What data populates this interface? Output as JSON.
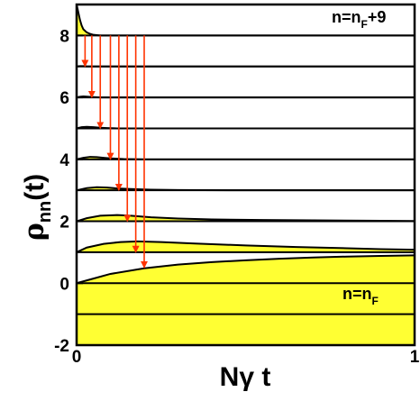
{
  "chart_data": {
    "type": "area",
    "title": "",
    "ylabel": {
      "main": "ρ",
      "sub": "nn",
      "tail": "(t)"
    },
    "xlabel": {
      "main": "Nγ",
      "tail": " t"
    },
    "xlim": [
      0,
      1
    ],
    "ylim": [
      -2,
      9
    ],
    "x_ticks": [
      "0",
      "1"
    ],
    "x_tick_values": [
      0,
      1
    ],
    "y_ticks": [
      "-2",
      "0",
      "2",
      "4",
      "6",
      "8"
    ],
    "y_tick_values": [
      -2,
      0,
      2,
      4,
      6,
      8
    ],
    "grid": false,
    "baselines": [
      -1,
      0,
      1,
      2,
      3,
      4,
      5,
      6,
      7,
      8
    ],
    "fill_color": "#ffff33",
    "arrow_color": "#ff3300",
    "line_color": "#000000",
    "series": [
      {
        "level": 0,
        "x": [
          0,
          0.05,
          0.1,
          0.2,
          0.3,
          0.4,
          0.5,
          0.6,
          0.7,
          0.8,
          0.9,
          1.0
        ],
        "y": [
          0,
          0.15,
          0.3,
          0.48,
          0.6,
          0.68,
          0.74,
          0.79,
          0.83,
          0.86,
          0.88,
          0.9
        ]
      },
      {
        "level": 1,
        "x": [
          0,
          0.03,
          0.08,
          0.13,
          0.18,
          0.25,
          0.35,
          0.5,
          0.65,
          0.8,
          0.9,
          1.0
        ],
        "y": [
          1,
          1.15,
          1.27,
          1.33,
          1.35,
          1.33,
          1.28,
          1.22,
          1.17,
          1.13,
          1.1,
          1.08
        ]
      },
      {
        "level": 2,
        "x": [
          0,
          0.03,
          0.07,
          0.12,
          0.16,
          0.22,
          0.3,
          0.4,
          0.55,
          0.7,
          0.85,
          1.0
        ],
        "y": [
          2,
          2.1,
          2.18,
          2.2,
          2.18,
          2.13,
          2.09,
          2.06,
          2.04,
          2.03,
          2.02,
          2.01
        ]
      },
      {
        "level": 3,
        "x": [
          0,
          0.03,
          0.06,
          0.09,
          0.12,
          0.16,
          0.22,
          0.3,
          0.45,
          0.6,
          0.8,
          1.0
        ],
        "y": [
          3,
          3.07,
          3.1,
          3.09,
          3.06,
          3.04,
          3.02,
          3.01,
          3.0,
          3.0,
          3.0,
          3.0
        ]
      },
      {
        "level": 4,
        "x": [
          0,
          0.02,
          0.04,
          0.06,
          0.08,
          0.1,
          0.14,
          0.2,
          0.3,
          0.5,
          0.75,
          1.0
        ],
        "y": [
          4,
          4.05,
          4.08,
          4.07,
          4.05,
          4.03,
          4.01,
          4.0,
          4.0,
          4.0,
          4.0,
          4.0
        ]
      },
      {
        "level": 5,
        "x": [
          0,
          0.015,
          0.03,
          0.05,
          0.07,
          0.09,
          0.12,
          0.2,
          0.4,
          0.6,
          0.8,
          1.0
        ],
        "y": [
          5,
          5.04,
          5.05,
          5.04,
          5.02,
          5.01,
          5.0,
          5.0,
          5.0,
          5.0,
          5.0,
          5.0
        ]
      },
      {
        "level": 6,
        "x": [
          0,
          0.01,
          0.02,
          0.035,
          0.05,
          0.07,
          0.1,
          0.2,
          0.4,
          0.6,
          0.8,
          1.0
        ],
        "y": [
          6,
          6.02,
          6.03,
          6.02,
          6.01,
          6.0,
          6.0,
          6.0,
          6.0,
          6.0,
          6.0,
          6.0
        ]
      },
      {
        "level": 7,
        "x": [
          0,
          0.01,
          0.02,
          0.03,
          0.05,
          0.1,
          0.2,
          0.4,
          0.6,
          0.8,
          1.0
        ],
        "y": [
          7,
          7.01,
          7.01,
          7.0,
          7.0,
          7.0,
          7.0,
          7.0,
          7.0,
          7.0,
          7.0
        ]
      },
      {
        "level": 8,
        "x": [
          0,
          0.005,
          0.01,
          0.015,
          0.02,
          0.03,
          0.04,
          0.05,
          0.07,
          0.1,
          0.2,
          0.4,
          0.6,
          0.8,
          1.0
        ],
        "y": [
          9.0,
          8.75,
          8.5,
          8.32,
          8.2,
          8.1,
          8.05,
          8.02,
          8.0,
          8.0,
          8.0,
          8.0,
          8.0,
          8.0,
          8.0
        ]
      }
    ],
    "arrows": [
      {
        "x": 0.025,
        "from": 8,
        "to": 7.0
      },
      {
        "x": 0.045,
        "from": 8,
        "to": 6.0
      },
      {
        "x": 0.07,
        "from": 8,
        "to": 5.0
      },
      {
        "x": 0.1,
        "from": 8,
        "to": 4.0
      },
      {
        "x": 0.125,
        "from": 8,
        "to": 3.0
      },
      {
        "x": 0.15,
        "from": 8,
        "to": 2.0
      },
      {
        "x": 0.175,
        "from": 8,
        "to": 1.0
      },
      {
        "x": 0.2,
        "from": 8,
        "to": 0.5
      }
    ],
    "annotations": {
      "top": {
        "main": "n=n",
        "sub": "F",
        "tail": "+9"
      },
      "bottom": {
        "main": "n=n",
        "sub": "F",
        "tail": ""
      }
    }
  }
}
